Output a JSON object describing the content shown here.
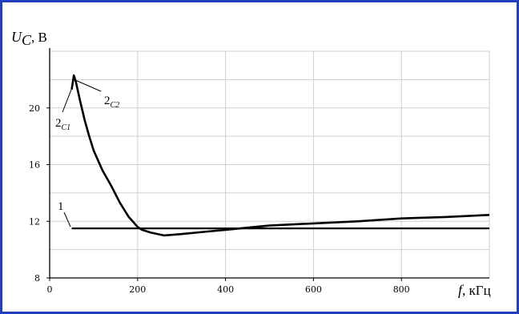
{
  "chart_data": {
    "type": "line",
    "title": "",
    "ylabel_symbol": "U",
    "ylabel_subscript": "C",
    "ylabel_unit": ", В",
    "xlabel_symbol": "f",
    "xlabel_unit": ", кГц",
    "xlim": [
      0,
      1000
    ],
    "ylim": [
      8,
      24
    ],
    "xticks": [
      0,
      200,
      400,
      600,
      800
    ],
    "yticks": [
      8,
      12,
      16,
      20
    ],
    "xtick_labels": [
      "0",
      "200",
      "400",
      "600",
      "800"
    ],
    "ytick_labels": [
      "8",
      "12",
      "16",
      "20"
    ],
    "grid": true,
    "series": [
      {
        "name": "1",
        "x": [
          50,
          1000
        ],
        "y": [
          11.5,
          11.5
        ]
      },
      {
        "name": "2",
        "x": [
          50,
          55,
          60,
          70,
          80,
          90,
          100,
          120,
          140,
          160,
          180,
          200,
          210,
          230,
          260,
          280,
          300,
          350,
          400,
          450,
          500,
          600,
          700,
          800,
          900,
          1000
        ],
        "y": [
          21.3,
          22.3,
          21.8,
          20.4,
          19.1,
          18.0,
          17.0,
          15.6,
          14.5,
          13.3,
          12.3,
          11.6,
          11.4,
          11.2,
          11.0,
          11.05,
          11.1,
          11.25,
          11.4,
          11.55,
          11.7,
          11.85,
          12.0,
          12.2,
          12.3,
          12.45
        ]
      }
    ],
    "annotations": [
      {
        "main": "1",
        "sub": ""
      },
      {
        "main": "2",
        "sub": "C1"
      },
      {
        "main": "2",
        "sub": "C2"
      }
    ]
  }
}
